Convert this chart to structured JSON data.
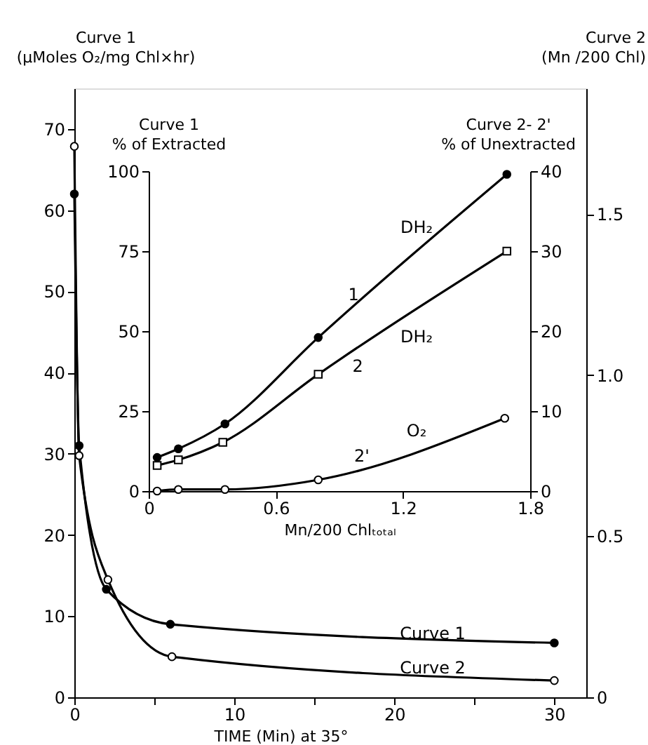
{
  "chart_data": [
    {
      "type": "line",
      "xlabel": "TIME (Min) at 35°",
      "ylabel": "Curve 1\n(μMoles O₂/mg Chl×hr)",
      "y2label": "Curve 2\n(Mn /200 Chl)",
      "xlim": [
        0,
        32
      ],
      "xticks": [
        0,
        {
          "value": 5,
          "label": null
        },
        10,
        {
          "value": 15,
          "label": null
        },
        20,
        {
          "value": 25,
          "label": null
        },
        30
      ],
      "ylim": [
        0,
        75
      ],
      "yticks": [
        0,
        10,
        20,
        30,
        40,
        50,
        60,
        70
      ],
      "y2lim": [
        0,
        1.89
      ],
      "y2ticks": [
        0,
        0.5,
        {
          "value": 1,
          "label": "1.0"
        },
        1.5
      ],
      "grid": false,
      "line_style": "solid",
      "series": [
        {
          "color": "#000000",
          "marker": "circle",
          "x": [
            0,
            0.3,
            2,
            6,
            30
          ],
          "values": [
            62,
            31,
            13.3,
            9,
            6.7
          ]
        },
        {
          "color": "#000000",
          "marker": "circle",
          "axis": "y2",
          "x": [
            0,
            0.3,
            2.1,
            6.1,
            30
          ],
          "values": [
            1.71,
            0.75,
            0.365,
            0.126,
            0.052
          ]
        }
      ],
      "annotations": [
        {
          "text": "Curve 1",
          "x": 22.4,
          "y": 7.9
        },
        {
          "text": "Curve 2",
          "x": 22.4,
          "y": 3.6
        }
      ]
    },
    {
      "type": "line",
      "xlabel": "Mn/200 Chlₜₒₜₐₗ",
      "ylabel": "Curve 1\n% of Extracted",
      "y2label": "Curve 2- 2'\n% of Unextracted",
      "xlim": [
        0,
        1.8
      ],
      "xticks": [
        0,
        0.6,
        1.2,
        1.8
      ],
      "ylim": [
        0,
        100
      ],
      "yticks": [
        0,
        25,
        50,
        75,
        100
      ],
      "y2lim": [
        0,
        40
      ],
      "y2ticks": [
        0,
        10,
        20,
        30,
        40
      ],
      "grid": false,
      "line_style": "solid",
      "series": [
        {
          "color": "#000000",
          "marker": "circle",
          "x": [
            0.04,
            0.14,
            0.36,
            0.8,
            1.69
          ],
          "values": [
            10.5,
            13.2,
            21,
            48,
            99
          ]
        },
        {
          "color": "#000000",
          "marker": "square",
          "axis": "y2",
          "x": [
            0.04,
            0.14,
            0.35,
            0.8,
            1.69
          ],
          "values": [
            3.2,
            3.9,
            6.1,
            14.6,
            30
          ]
        },
        {
          "color": "#000000",
          "marker": "circle",
          "axis": "y2",
          "x": [
            0.04,
            0.14,
            0.36,
            0.8,
            1.68
          ],
          "values": [
            0,
            0.2,
            0.2,
            1.4,
            9.1
          ]
        }
      ],
      "annotations": [
        "DH₂",
        "1",
        "DH₂",
        "2",
        "O₂",
        "2'"
      ]
    }
  ]
}
